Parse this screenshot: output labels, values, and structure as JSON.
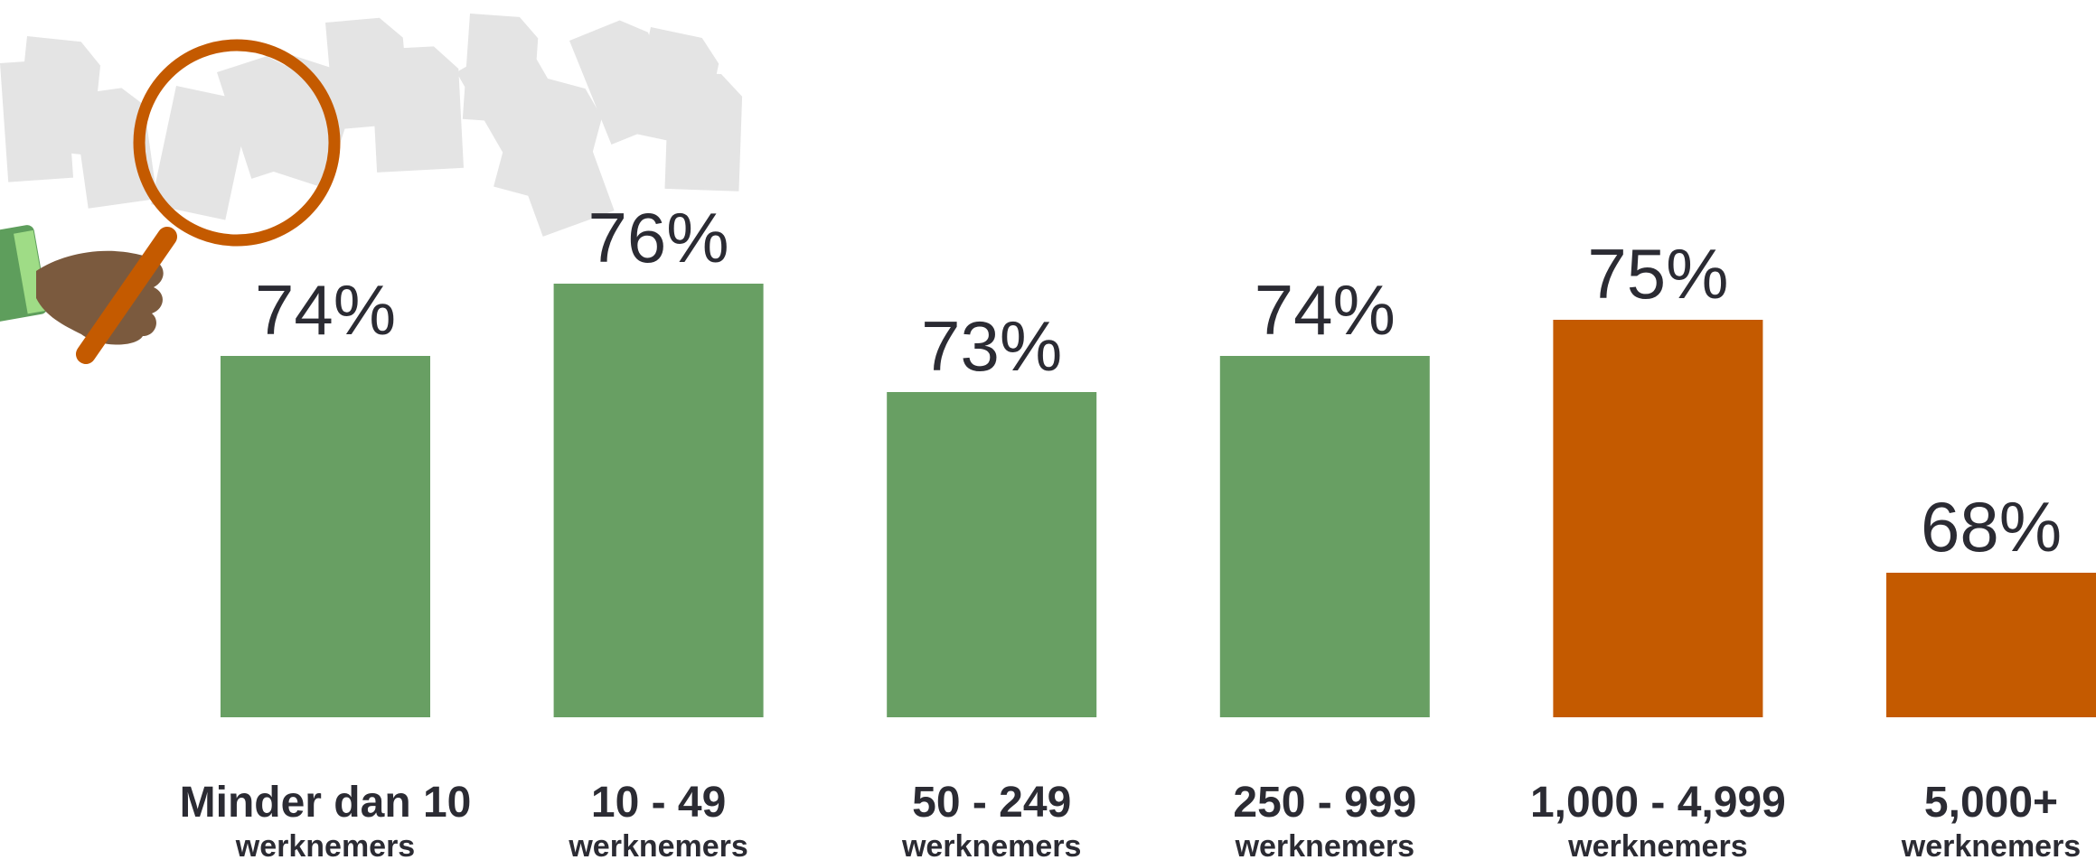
{
  "colors": {
    "green": "#689f63",
    "orange": "#c45a00",
    "text": "#2b2b33",
    "paper": "#e4e4e4",
    "skin": "#7b5a3e",
    "sleeve": "#5e9e5c",
    "cuff": "#9fdc86"
  },
  "illustration": {
    "icon": "magnifying-glass-over-documents-icon"
  },
  "chart_data": {
    "type": "bar",
    "categories": [
      "Minder dan 10 werknemers",
      "10 - 49 werknemers",
      "50 - 249 werknemers",
      "250 - 999 werknemers",
      "1,000 - 4,999 werknemers",
      "5,000+ werknemers"
    ],
    "category_lines": [
      [
        "Minder dan 10",
        "werknemers"
      ],
      [
        "10 - 49",
        "werknemers"
      ],
      [
        "50 - 249",
        "werknemers"
      ],
      [
        "250 - 999",
        "werknemers"
      ],
      [
        "1,000 - 4,999",
        "werknemers"
      ],
      [
        "5,000+",
        "werknemers"
      ]
    ],
    "values": [
      74,
      76,
      73,
      74,
      75,
      68
    ],
    "value_labels": [
      "74%",
      "76%",
      "73%",
      "74%",
      "75%",
      "68%"
    ],
    "bar_colors": [
      "#689f63",
      "#689f63",
      "#689f63",
      "#689f63",
      "#c45a00",
      "#c45a00"
    ],
    "title": "",
    "xlabel": "",
    "ylabel": "",
    "grid": false,
    "legend": "none"
  }
}
